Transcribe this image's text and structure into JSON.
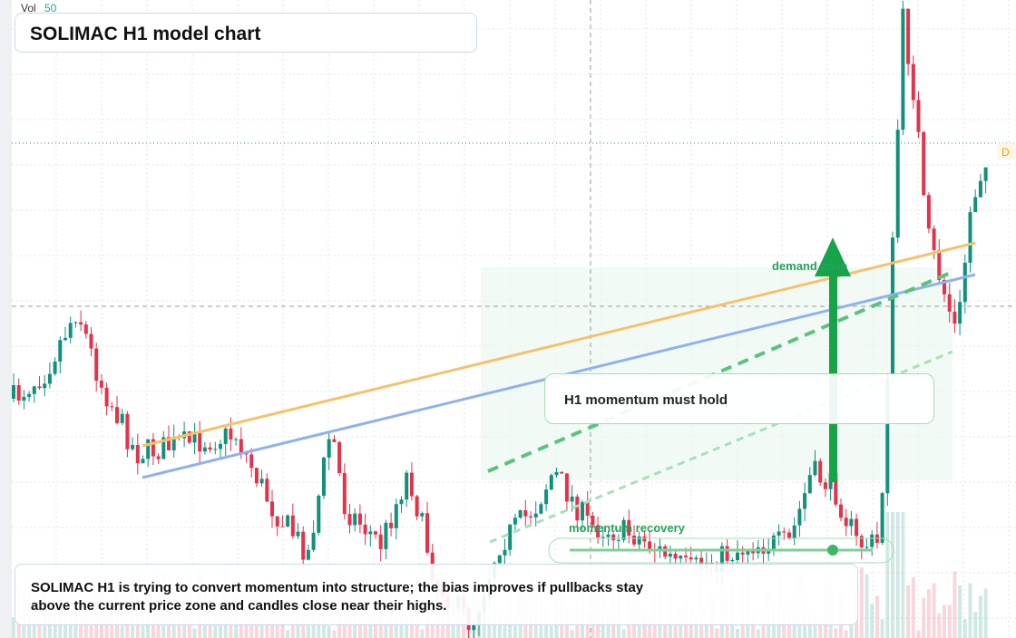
{
  "header": {
    "title": "SOLIMAC H1 model chart",
    "vol_label": "Vol",
    "vol_value": "50",
    "badge": "D"
  },
  "annotations": {
    "zone": "demand zone",
    "callout": "H1 momentum must hold",
    "track": "momentum recovery"
  },
  "note": {
    "text": "SOLIMAC H1 is trying to convert momentum into structure; the bias improves if pullbacks stay above the current price zone and candles close near their highs."
  }
}
